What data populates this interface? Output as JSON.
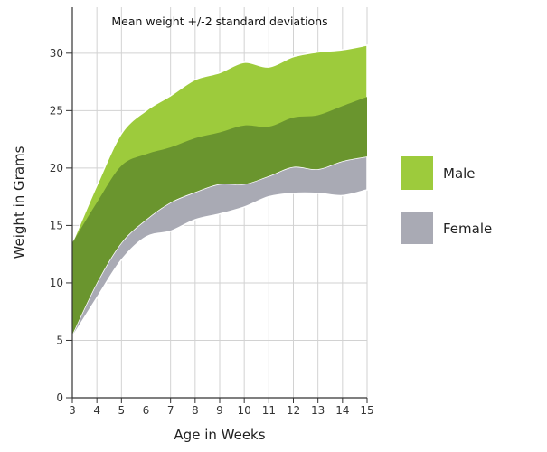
{
  "chart_data": {
    "type": "area",
    "title": "Mean weight +/-2 standard deviations",
    "xlabel": "Age in Weeks",
    "ylabel": "Weight in Grams",
    "xlim": [
      3,
      15
    ],
    "ylim": [
      0,
      34
    ],
    "x_ticks": [
      3,
      4,
      5,
      6,
      7,
      8,
      9,
      10,
      11,
      12,
      13,
      14,
      15
    ],
    "y_ticks": [
      0,
      5,
      10,
      15,
      20,
      25,
      30
    ],
    "grid": true,
    "x": [
      3,
      4,
      5,
      6,
      7,
      8,
      9,
      10,
      11,
      12,
      13,
      14,
      15
    ],
    "series": [
      {
        "name": "Male",
        "color": "#9dcb3c",
        "band_color": "#9dcb3c",
        "upper": [
          13.5,
          18.5,
          23.0,
          25.0,
          26.3,
          27.7,
          28.3,
          29.2,
          28.8,
          29.7,
          30.1,
          30.3,
          30.7
        ],
        "lower": [
          5.5,
          10.0,
          13.5,
          15.5,
          17.0,
          17.9,
          18.6,
          18.6,
          19.3,
          20.1,
          19.9,
          20.6,
          21.0
        ]
      },
      {
        "name": "Female",
        "color": "#a9aab4",
        "band_color": "#a9aab4",
        "upper": [
          13.5,
          17.0,
          20.2,
          21.2,
          21.8,
          22.6,
          23.1,
          23.7,
          23.6,
          24.4,
          24.6,
          25.4,
          26.2
        ],
        "lower": [
          5.3,
          8.7,
          12.0,
          14.0,
          14.5,
          15.5,
          16.0,
          16.6,
          17.5,
          17.8,
          17.8,
          17.6,
          18.1
        ]
      }
    ],
    "overlap_color": "#6a952e",
    "legend_position": "right"
  }
}
